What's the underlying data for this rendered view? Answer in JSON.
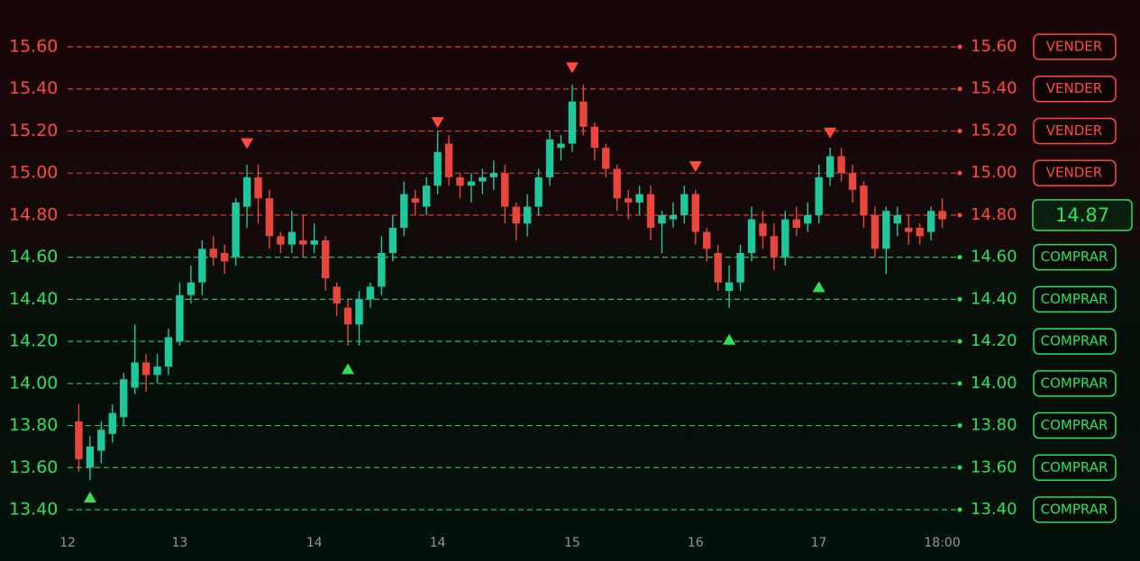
{
  "chart_data": {
    "type": "candlestick",
    "up_color": "#1fc79c",
    "down_color": "#e8463d",
    "sell_color": "#ff4a3d",
    "buy_color": "#2ee05a",
    "open": [
      13.82,
      13.6,
      13.68,
      13.76,
      13.84,
      13.98,
      14.1,
      14.04,
      14.08,
      14.2,
      14.42,
      14.48,
      14.64,
      14.62,
      14.6,
      14.84,
      14.98,
      14.88,
      14.7,
      14.66,
      14.68,
      14.66,
      14.68,
      14.46,
      14.36,
      14.28,
      14.4,
      14.46,
      14.62,
      14.74,
      14.88,
      14.84,
      14.94,
      15.14,
      14.98,
      14.94,
      14.96,
      14.98,
      15.0,
      14.84,
      14.76,
      14.84,
      14.98,
      15.12,
      15.14,
      15.34,
      15.22,
      15.12,
      15.02,
      14.88,
      14.86,
      14.9,
      14.76,
      14.78,
      14.8,
      14.9,
      14.72,
      14.62,
      14.44,
      14.48,
      14.62,
      14.76,
      14.7,
      14.6,
      14.78,
      14.76,
      14.8,
      14.98,
      15.08,
      15.0,
      14.94,
      14.8,
      14.64,
      14.76,
      14.74,
      14.74,
      14.72,
      14.82
    ],
    "high": [
      13.9,
      13.75,
      13.82,
      13.9,
      14.05,
      14.28,
      14.14,
      14.14,
      14.26,
      14.48,
      14.56,
      14.68,
      14.7,
      14.66,
      14.88,
      15.04,
      15.04,
      14.92,
      14.72,
      14.82,
      14.8,
      14.76,
      14.7,
      14.48,
      14.4,
      14.44,
      14.48,
      14.7,
      14.8,
      14.96,
      14.92,
      14.98,
      15.2,
      15.18,
      15.0,
      15.0,
      15.02,
      15.06,
      15.04,
      14.86,
      14.9,
      15.02,
      15.2,
      15.18,
      15.42,
      15.42,
      15.24,
      15.14,
      15.04,
      14.92,
      14.94,
      14.94,
      14.82,
      14.86,
      14.94,
      14.92,
      14.74,
      14.66,
      14.56,
      14.66,
      14.84,
      14.82,
      14.76,
      14.82,
      14.84,
      14.86,
      15.04,
      15.12,
      15.12,
      15.04,
      14.96,
      14.84,
      14.84,
      14.84,
      14.8,
      14.76,
      14.84,
      14.88
    ],
    "low": [
      13.58,
      13.54,
      13.62,
      13.72,
      13.8,
      13.95,
      13.96,
      14.0,
      14.04,
      14.18,
      14.38,
      14.42,
      14.56,
      14.52,
      14.56,
      14.74,
      14.76,
      14.64,
      14.62,
      14.62,
      14.6,
      14.62,
      14.44,
      14.32,
      14.18,
      14.18,
      14.36,
      14.42,
      14.58,
      14.7,
      14.8,
      14.8,
      14.9,
      14.94,
      14.88,
      14.86,
      14.9,
      14.92,
      14.76,
      14.68,
      14.7,
      14.8,
      14.94,
      15.06,
      15.1,
      15.18,
      15.06,
      14.98,
      14.82,
      14.78,
      14.8,
      14.68,
      14.62,
      14.74,
      14.76,
      14.66,
      14.58,
      14.44,
      14.36,
      14.44,
      14.58,
      14.64,
      14.54,
      14.56,
      14.7,
      14.72,
      14.76,
      14.94,
      14.96,
      14.86,
      14.74,
      14.6,
      14.52,
      14.7,
      14.66,
      14.66,
      14.68,
      14.74
    ],
    "close": [
      13.64,
      13.7,
      13.78,
      13.86,
      14.02,
      14.1,
      14.04,
      14.08,
      14.22,
      14.42,
      14.48,
      14.64,
      14.6,
      14.58,
      14.86,
      14.98,
      14.88,
      14.7,
      14.66,
      14.72,
      14.66,
      14.68,
      14.5,
      14.38,
      14.28,
      14.4,
      14.46,
      14.62,
      14.74,
      14.9,
      14.86,
      14.94,
      15.1,
      14.98,
      14.94,
      14.96,
      14.98,
      15.0,
      14.84,
      14.76,
      14.84,
      14.98,
      15.16,
      15.14,
      15.34,
      15.22,
      15.12,
      15.02,
      14.88,
      14.86,
      14.9,
      14.74,
      14.8,
      14.8,
      14.9,
      14.72,
      14.64,
      14.48,
      14.48,
      14.62,
      14.78,
      14.7,
      14.6,
      14.78,
      14.74,
      14.8,
      14.98,
      15.08,
      15.0,
      14.92,
      14.8,
      14.64,
      14.82,
      14.8,
      14.72,
      14.7,
      14.82,
      14.78
    ],
    "xlim": [
      -1,
      78
    ],
    "xticks": [
      {
        "value": -1,
        "label": "12"
      },
      {
        "value": 9,
        "label": "13"
      },
      {
        "value": 21,
        "label": "14"
      },
      {
        "value": 32,
        "label": "14"
      },
      {
        "value": 44,
        "label": "15"
      },
      {
        "value": 55,
        "label": "16"
      },
      {
        "value": 66,
        "label": "17"
      },
      {
        "value": 77,
        "label": "18:00"
      }
    ],
    "ylim": [
      13.4,
      15.6
    ],
    "yticks": [
      {
        "value": 15.6,
        "label": "15.60"
      },
      {
        "value": 15.4,
        "label": "15.40"
      },
      {
        "value": 15.2,
        "label": "15.20"
      },
      {
        "value": 15.0,
        "label": "15.00"
      },
      {
        "value": 14.8,
        "label": "14.80"
      },
      {
        "value": 14.6,
        "label": "14.60"
      },
      {
        "value": 14.4,
        "label": "14.40"
      },
      {
        "value": 14.2,
        "label": "14.20"
      },
      {
        "value": 14.0,
        "label": "14.00"
      },
      {
        "value": 13.8,
        "label": "13.80"
      },
      {
        "value": 13.6,
        "label": "13.60"
      },
      {
        "value": 13.4,
        "label": "13.40"
      }
    ],
    "grid_colors": [
      "#ff4a3d",
      "#ff4a3d",
      "#ff4a3d",
      "#ff4a3d",
      "#ff4a3d",
      "#2ee05a",
      "#2ee05a",
      "#2ee05a",
      "#2ee05a",
      "#2ee05a",
      "#2ee05a",
      "#2ee05a"
    ],
    "actions": [
      "VENDER",
      "VENDER",
      "VENDER",
      "VENDER",
      null,
      "COMPRAR",
      "COMPRAR",
      "COMPRAR",
      "COMPRAR",
      "COMPRAR",
      "COMPRAR",
      "COMPRAR"
    ],
    "current_price": 14.87,
    "sell_signals": [
      {
        "x": 15,
        "y": 15.14
      },
      {
        "x": 32,
        "y": 15.24
      },
      {
        "x": 44,
        "y": 15.5
      },
      {
        "x": 55,
        "y": 15.03
      },
      {
        "x": 67,
        "y": 15.19
      }
    ],
    "buy_signals": [
      {
        "x": 1,
        "y": 13.46
      },
      {
        "x": 24,
        "y": 14.07
      },
      {
        "x": 58,
        "y": 14.21
      },
      {
        "x": 66,
        "y": 14.46
      }
    ]
  }
}
